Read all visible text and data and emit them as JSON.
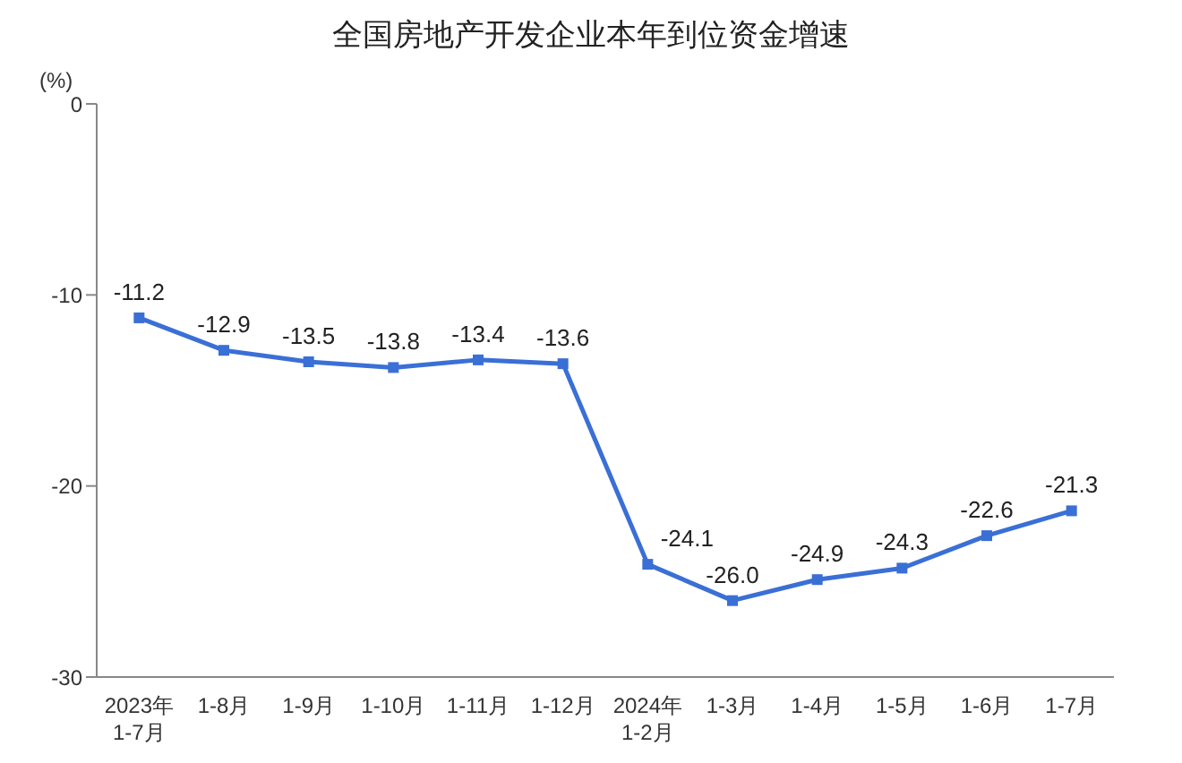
{
  "chart_data": {
    "type": "line",
    "title": "全国房地产开发企业本年到位资金增速",
    "ylabel": "(%)",
    "categories": [
      "2023年\n1-7月",
      "1-8月",
      "1-9月",
      "1-10月",
      "1-11月",
      "1-12月",
      "2024年\n1-2月",
      "1-3月",
      "1-4月",
      "1-5月",
      "1-6月",
      "1-7月"
    ],
    "series": [
      {
        "color": "#3a6fd6",
        "values": [
          -11.2,
          -12.9,
          -13.5,
          -13.8,
          -13.4,
          -13.6,
          -24.1,
          -26.0,
          -24.9,
          -24.3,
          -22.6,
          -21.3
        ],
        "value_labels": [
          "-11.2",
          "-12.9",
          "-13.5",
          "-13.8",
          "-13.4",
          "-13.6",
          "-24.1",
          "-26.0",
          "-24.9",
          "-24.3",
          "-22.6",
          "-21.3"
        ]
      }
    ],
    "ylim": [
      -30,
      0
    ],
    "yticks": [
      0,
      -10,
      -20,
      -30
    ],
    "marker": "square",
    "grid": false,
    "legend": false
  }
}
